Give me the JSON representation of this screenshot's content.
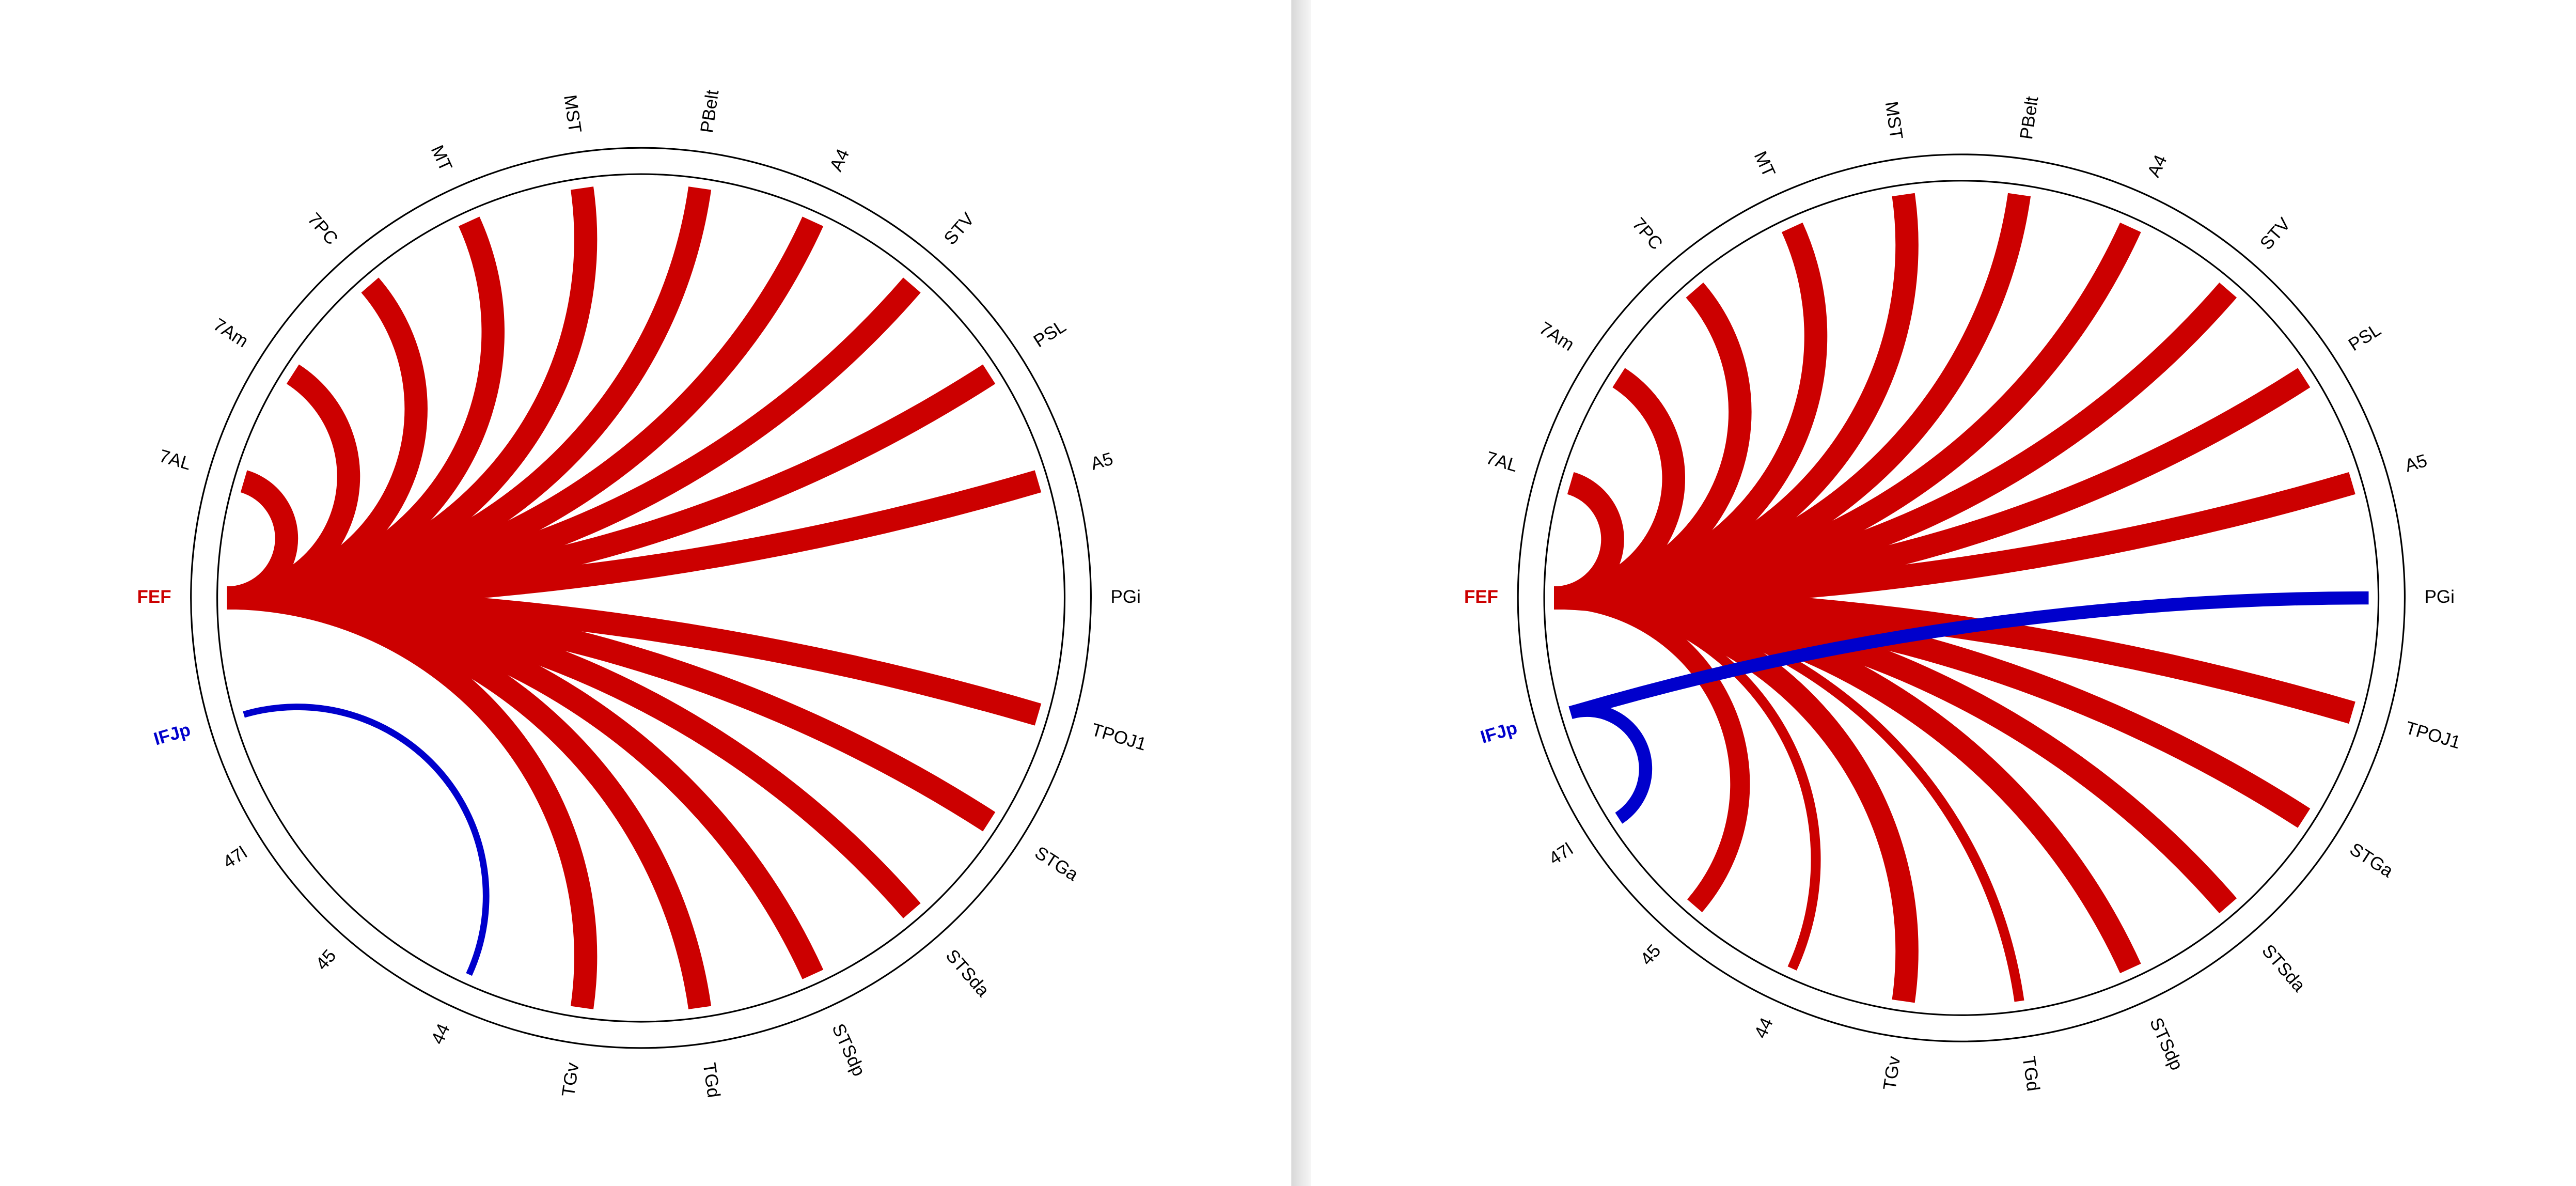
{
  "panels": [
    {
      "labels": [
        {
          "text": "FEF",
          "color": "#cc0000",
          "bold": true
        },
        {
          "text": "7AL"
        },
        {
          "text": "7Am"
        },
        {
          "text": "7PC"
        },
        {
          "text": "MT"
        },
        {
          "text": "MST"
        },
        {
          "text": "PBelt"
        },
        {
          "text": "A4"
        },
        {
          "text": "STV"
        },
        {
          "text": "PSL"
        },
        {
          "text": "A5"
        },
        {
          "text": "PGi"
        },
        {
          "text": "TPOJ1"
        },
        {
          "text": "STGa"
        },
        {
          "text": "STSda"
        },
        {
          "text": "STSdp"
        },
        {
          "text": "TGd"
        },
        {
          "text": "TGv"
        },
        {
          "text": "44"
        },
        {
          "text": "45"
        },
        {
          "text": "47l"
        },
        {
          "text": "IFJp",
          "color": "#0000cc",
          "bold": true
        }
      ],
      "links": [
        {
          "source": 0,
          "target": 1,
          "color": "#cc0000",
          "width": 14
        },
        {
          "source": 0,
          "target": 2,
          "color": "#cc0000",
          "width": 14
        },
        {
          "source": 0,
          "target": 3,
          "color": "#cc0000",
          "width": 14
        },
        {
          "source": 0,
          "target": 4,
          "color": "#cc0000",
          "width": 14
        },
        {
          "source": 0,
          "target": 5,
          "color": "#cc0000",
          "width": 14
        },
        {
          "source": 0,
          "target": 6,
          "color": "#cc0000",
          "width": 14
        },
        {
          "source": 0,
          "target": 7,
          "color": "#cc0000",
          "width": 14
        },
        {
          "source": 0,
          "target": 8,
          "color": "#cc0000",
          "width": 14
        },
        {
          "source": 0,
          "target": 9,
          "color": "#cc0000",
          "width": 14
        },
        {
          "source": 0,
          "target": 10,
          "color": "#cc0000",
          "width": 14
        },
        {
          "source": 0,
          "target": 12,
          "color": "#cc0000",
          "width": 14
        },
        {
          "source": 0,
          "target": 13,
          "color": "#cc0000",
          "width": 14
        },
        {
          "source": 0,
          "target": 14,
          "color": "#cc0000",
          "width": 14
        },
        {
          "source": 0,
          "target": 15,
          "color": "#cc0000",
          "width": 14
        },
        {
          "source": 0,
          "target": 16,
          "color": "#cc0000",
          "width": 14
        },
        {
          "source": 0,
          "target": 17,
          "color": "#cc0000",
          "width": 14
        },
        {
          "source": 21,
          "target": 18,
          "color": "#0000cc",
          "width": 4
        }
      ]
    },
    {
      "labels": [
        {
          "text": "FEF",
          "color": "#cc0000",
          "bold": true
        },
        {
          "text": "7AL"
        },
        {
          "text": "7Am"
        },
        {
          "text": "7PC"
        },
        {
          "text": "MT"
        },
        {
          "text": "MST"
        },
        {
          "text": "PBelt"
        },
        {
          "text": "A4"
        },
        {
          "text": "STV"
        },
        {
          "text": "PSL"
        },
        {
          "text": "A5"
        },
        {
          "text": "PGi"
        },
        {
          "text": "TPOJ1"
        },
        {
          "text": "STGa"
        },
        {
          "text": "STSda"
        },
        {
          "text": "STSdp"
        },
        {
          "text": "TGd"
        },
        {
          "text": "TGv"
        },
        {
          "text": "44"
        },
        {
          "text": "45"
        },
        {
          "text": "47l"
        },
        {
          "text": "IFJp",
          "color": "#0000cc",
          "bold": true
        }
      ],
      "links": [
        {
          "source": 0,
          "target": 1,
          "color": "#cc0000",
          "width": 14
        },
        {
          "source": 0,
          "target": 2,
          "color": "#cc0000",
          "width": 14
        },
        {
          "source": 0,
          "target": 3,
          "color": "#cc0000",
          "width": 14
        },
        {
          "source": 0,
          "target": 4,
          "color": "#cc0000",
          "width": 14
        },
        {
          "source": 0,
          "target": 5,
          "color": "#cc0000",
          "width": 14
        },
        {
          "source": 0,
          "target": 6,
          "color": "#cc0000",
          "width": 14
        },
        {
          "source": 0,
          "target": 7,
          "color": "#cc0000",
          "width": 14
        },
        {
          "source": 0,
          "target": 8,
          "color": "#cc0000",
          "width": 14
        },
        {
          "source": 0,
          "target": 9,
          "color": "#cc0000",
          "width": 14
        },
        {
          "source": 0,
          "target": 10,
          "color": "#cc0000",
          "width": 14
        },
        {
          "source": 0,
          "target": 12,
          "color": "#cc0000",
          "width": 14
        },
        {
          "source": 0,
          "target": 13,
          "color": "#cc0000",
          "width": 14
        },
        {
          "source": 0,
          "target": 14,
          "color": "#cc0000",
          "width": 14
        },
        {
          "source": 0,
          "target": 15,
          "color": "#cc0000",
          "width": 14
        },
        {
          "source": 0,
          "target": 16,
          "color": "#cc0000",
          "width": 6
        },
        {
          "source": 0,
          "target": 17,
          "color": "#cc0000",
          "width": 14
        },
        {
          "source": 0,
          "target": 18,
          "color": "#cc0000",
          "width": 6
        },
        {
          "source": 0,
          "target": 19,
          "color": "#cc0000",
          "width": 12
        },
        {
          "source": 21,
          "target": 11,
          "color": "#0000cc",
          "width": 8
        },
        {
          "source": 21,
          "target": 20,
          "color": "#0000cc",
          "width": 8
        }
      ]
    }
  ]
}
